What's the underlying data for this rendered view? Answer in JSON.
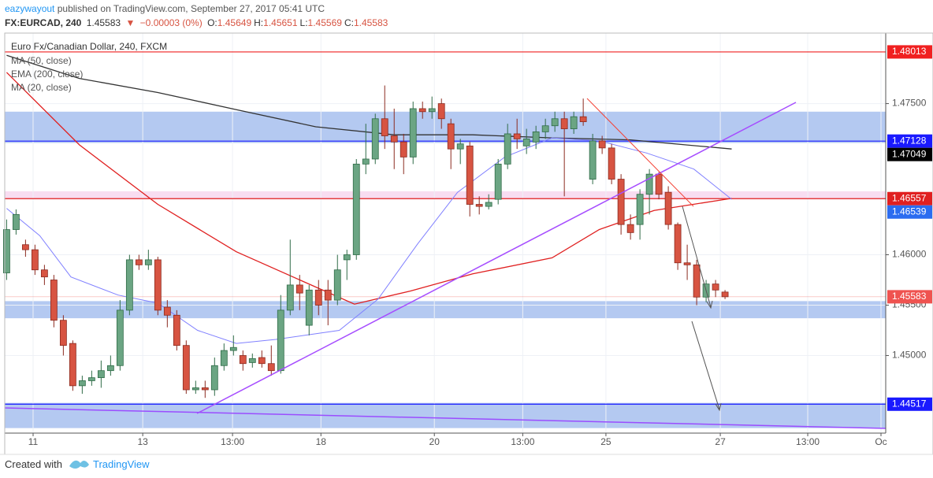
{
  "header": {
    "user": "eazywayout",
    "published": "published on TradingView.com, September 27, 2017 05:41 UTC",
    "symbol": "FX:EURCAD, 240",
    "last": "1.45583",
    "arrow": "▼",
    "change": "−0.00003 (0%)",
    "ohlc": [
      {
        "label": "O:",
        "value": "1.45649"
      },
      {
        "label": "H:",
        "value": "1.45651"
      },
      {
        "label": "L:",
        "value": "1.45569"
      },
      {
        "label": "C:",
        "value": "1.45583"
      }
    ]
  },
  "footer": {
    "created": "Created with",
    "brand": "TradingView"
  },
  "chart_data": {
    "type": "candlestick",
    "title": "Euro Fx/Canadian Dollar, 240, FXCM",
    "up_color": "#6ba583",
    "down_color": "#d75442",
    "xlim": [
      -0.2,
      93
    ],
    "ylim": [
      1.4423,
      1.482
    ],
    "grid": true,
    "xticks": [
      {
        "value": 2.8,
        "label": "11"
      },
      {
        "value": 14.4,
        "label": "13"
      },
      {
        "value": 23.9,
        "label": "13:00"
      },
      {
        "value": 33.25,
        "label": "18"
      },
      {
        "value": 45.25,
        "label": "20"
      },
      {
        "value": 54.6,
        "label": "13:00"
      },
      {
        "value": 63.4,
        "label": "25"
      },
      {
        "value": 75.5,
        "label": "27"
      },
      {
        "value": 84.75,
        "label": "13:00"
      },
      {
        "value": 92.5,
        "label": "Oc"
      }
    ],
    "yticks": [
      {
        "value": 1.475,
        "label": "1.47500"
      },
      {
        "value": 1.46,
        "label": "1.46000"
      },
      {
        "value": 1.455,
        "label": "1.45500"
      },
      {
        "value": 1.45,
        "label": "1.45000"
      }
    ],
    "open": [
      1.4582,
      1.4625,
      1.461,
      1.4605,
      1.4585,
      1.4575,
      1.4535,
      1.4512,
      1.447,
      1.4475,
      1.4478,
      1.4485,
      1.449,
      1.4545,
      1.4595,
      1.459,
      1.4595,
      1.4548,
      1.454,
      1.451,
      1.4466,
      1.4468,
      1.4466,
      1.449,
      1.4505,
      1.45,
      1.4493,
      1.4498,
      1.4492,
      1.4485,
      1.4545,
      1.457,
      1.453,
      1.4565,
      1.4565,
      1.4555,
      1.4595,
      1.46,
      1.469,
      1.4695,
      1.4735,
      1.4718,
      1.4712,
      1.4697,
      1.4745,
      1.4742,
      1.475,
      1.473,
      1.4705,
      1.4708,
      1.465,
      1.4648,
      1.4655,
      1.469,
      1.472,
      1.4708,
      1.4712,
      1.4722,
      1.4728,
      1.4735,
      1.4725,
      1.4737,
      1.4675,
      1.4713,
      1.4706,
      1.4675,
      1.463,
      1.463,
      1.466,
      1.468,
      1.4662,
      1.463,
      1.4592,
      1.459,
      1.4558,
      1.4571,
      1.4563
    ],
    "high": [
      1.4635,
      1.4645,
      1.4615,
      1.461,
      1.459,
      1.458,
      1.454,
      1.4515,
      1.448,
      1.4485,
      1.4495,
      1.45,
      1.4555,
      1.46,
      1.46,
      1.4605,
      1.4598,
      1.4555,
      1.4545,
      1.4515,
      1.4475,
      1.4475,
      1.4498,
      1.4512,
      1.452,
      1.4505,
      1.4502,
      1.4505,
      1.451,
      1.456,
      1.4615,
      1.458,
      1.457,
      1.4575,
      1.4575,
      1.46,
      1.4605,
      1.4695,
      1.473,
      1.474,
      1.4768,
      1.4745,
      1.472,
      1.4752,
      1.4752,
      1.4757,
      1.4755,
      1.4735,
      1.4715,
      1.4712,
      1.4658,
      1.466,
      1.4695,
      1.473,
      1.4735,
      1.4725,
      1.4728,
      1.4735,
      1.4742,
      1.4742,
      1.4742,
      1.4755,
      1.472,
      1.4718,
      1.471,
      1.468,
      1.464,
      1.4665,
      1.4685,
      1.4682,
      1.4668,
      1.4632,
      1.461,
      1.4595,
      1.4575,
      1.4575,
      1.4565
    ],
    "low": [
      1.4575,
      1.462,
      1.4598,
      1.458,
      1.457,
      1.4528,
      1.45,
      1.4465,
      1.4462,
      1.447,
      1.4468,
      1.448,
      1.4485,
      1.454,
      1.4585,
      1.4585,
      1.454,
      1.4528,
      1.4505,
      1.4462,
      1.4462,
      1.4458,
      1.446,
      1.4485,
      1.45,
      1.4485,
      1.4488,
      1.4488,
      1.448,
      1.4482,
      1.454,
      1.4545,
      1.452,
      1.454,
      1.453,
      1.455,
      1.4575,
      1.4595,
      1.468,
      1.469,
      1.4705,
      1.4685,
      1.468,
      1.469,
      1.4735,
      1.4735,
      1.4725,
      1.4685,
      1.469,
      1.4638,
      1.464,
      1.4645,
      1.465,
      1.4685,
      1.4705,
      1.47,
      1.4705,
      1.4715,
      1.4722,
      1.4658,
      1.472,
      1.4728,
      1.467,
      1.47,
      1.467,
      1.462,
      1.4615,
      1.4615,
      1.464,
      1.4655,
      1.4625,
      1.4585,
      1.4575,
      1.455,
      1.4553,
      1.4558,
      1.4556
    ],
    "close": [
      1.4625,
      1.464,
      1.4605,
      1.4585,
      1.4578,
      1.4535,
      1.451,
      1.447,
      1.4475,
      1.4478,
      1.4485,
      1.449,
      1.4545,
      1.4595,
      1.459,
      1.4595,
      1.4545,
      1.454,
      1.451,
      1.4466,
      1.4468,
      1.4466,
      1.449,
      1.4505,
      1.4508,
      1.4492,
      1.4497,
      1.4492,
      1.4485,
      1.4545,
      1.457,
      1.4562,
      1.4565,
      1.455,
      1.4555,
      1.4585,
      1.46,
      1.469,
      1.4695,
      1.4735,
      1.4718,
      1.4712,
      1.4697,
      1.4745,
      1.4742,
      1.4745,
      1.4735,
      1.4705,
      1.471,
      1.465,
      1.4648,
      1.4652,
      1.469,
      1.472,
      1.4715,
      1.4715,
      1.4722,
      1.4728,
      1.4735,
      1.4725,
      1.4737,
      1.4732,
      1.4713,
      1.4706,
      1.4675,
      1.463,
      1.4622,
      1.466,
      1.468,
      1.466,
      1.463,
      1.4592,
      1.459,
      1.4558,
      1.4571,
      1.4565,
      1.45583
    ],
    "series": [
      {
        "name": "MA (50, close)",
        "color": "#333333",
        "x": [
          0,
          7.7,
          16,
          24.3,
          32.7,
          41,
          49.3,
          57.7,
          66,
          76.7
        ],
        "values": [
          1.4798,
          1.4775,
          1.4761,
          1.4744,
          1.4727,
          1.4719,
          1.4719,
          1.4716,
          1.4714,
          1.4705
        ]
      },
      {
        "name": "EMA (200, close)",
        "color": "#e02020",
        "x": [
          0,
          7.7,
          16,
          24.3,
          32.7,
          36.8,
          42.7,
          49.3,
          57.7,
          62.7,
          68.5,
          76.7
        ],
        "values": [
          1.4781,
          1.4709,
          1.465,
          1.4603,
          1.4568,
          1.4551,
          1.4564,
          1.4581,
          1.4597,
          1.4625,
          1.4644,
          1.4656
        ]
      },
      {
        "name": "MA (20, close)",
        "color": "#8080ff",
        "x": [
          0,
          3.5,
          6.8,
          11.8,
          16,
          20.2,
          24.3,
          28.5,
          35.2,
          39.3,
          43.5,
          47.7,
          52.7,
          57.7,
          62.7,
          67.7,
          72.7,
          76.7
        ],
        "values": [
          1.4646,
          1.4619,
          1.4578,
          1.456,
          1.4552,
          1.4525,
          1.4512,
          1.4516,
          1.4525,
          1.4556,
          1.4611,
          1.4662,
          1.4697,
          1.4716,
          1.4713,
          1.4701,
          1.4685,
          1.4655
        ]
      }
    ],
    "zones": [
      {
        "low": 1.4711,
        "high": 1.4742,
        "color": "#a7c0ef"
      },
      {
        "low": 1.4655,
        "high": 1.4663,
        "color": "#f7d7ef"
      },
      {
        "low": 1.4537,
        "high": 1.4554,
        "color": "#a7c0ef"
      },
      {
        "low": 1.4428,
        "high": 1.4453,
        "color": "#a7c0ef"
      }
    ],
    "price_labels": [
      {
        "value": 1.48013,
        "color": "#f02020",
        "line": true
      },
      {
        "value": 1.47128,
        "color": "#1a1aff",
        "line": true
      },
      {
        "value": 1.47049,
        "color": "#000000",
        "line": false
      },
      {
        "value": 1.46557,
        "color": "#e02020",
        "line": true
      },
      {
        "value": 1.46539,
        "color": "#2b6cf0",
        "line": false
      },
      {
        "value": 1.45583,
        "color": "#ef5350",
        "line": true
      },
      {
        "value": 1.44517,
        "color": "#1a1aff",
        "line": true
      }
    ]
  }
}
